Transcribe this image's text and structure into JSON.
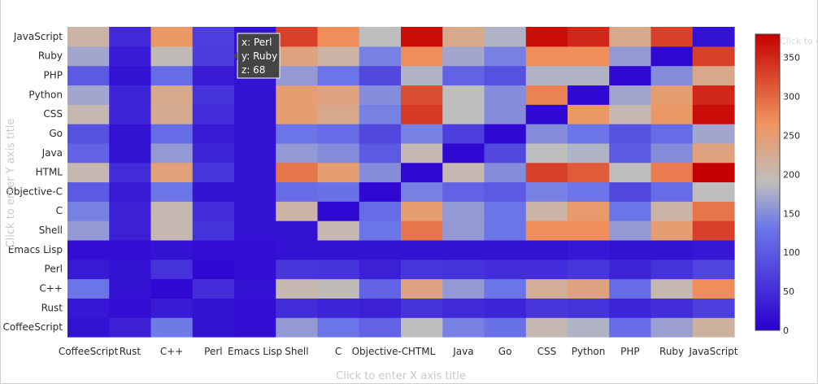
{
  "chart_data": {
    "type": "heatmap",
    "x": [
      "CoffeeScript",
      "Rust",
      "C++",
      "Perl",
      "Emacs Lisp",
      "Shell",
      "C",
      "Objective-C",
      "HTML",
      "Java",
      "Go",
      "CSS",
      "Python",
      "PHP",
      "Ruby",
      "JavaScript"
    ],
    "y": [
      "CoffeeScript",
      "Rust",
      "C++",
      "Perl",
      "Emacs Lisp",
      "Shell",
      "C",
      "Objective-C",
      "HTML",
      "Java",
      "Go",
      "CSS",
      "Python",
      "PHP",
      "Ruby",
      "JavaScript"
    ],
    "z": [
      [
        20,
        35,
        135,
        20,
        15,
        160,
        130,
        110,
        190,
        140,
        125,
        200,
        180,
        120,
        165,
        215
      ],
      [
        25,
        15,
        30,
        20,
        15,
        50,
        40,
        35,
        55,
        45,
        40,
        60,
        55,
        40,
        50,
        70
      ],
      [
        130,
        20,
        10,
        50,
        20,
        200,
        195,
        110,
        240,
        160,
        130,
        220,
        240,
        120,
        200,
        270
      ],
      [
        30,
        20,
        55,
        10,
        15,
        60,
        55,
        35,
        60,
        55,
        50,
        50,
        60,
        40,
        55,
        75
      ],
      [
        15,
        15,
        20,
        15,
        15,
        20,
        20,
        20,
        20,
        20,
        20,
        20,
        25,
        20,
        20,
        25
      ],
      [
        160,
        35,
        200,
        55,
        20,
        20,
        200,
        130,
        290,
        160,
        130,
        270,
        270,
        160,
        250,
        330
      ],
      [
        140,
        35,
        200,
        50,
        20,
        210,
        10,
        120,
        250,
        160,
        130,
        210,
        255,
        130,
        210,
        290
      ],
      [
        100,
        30,
        130,
        20,
        20,
        120,
        125,
        10,
        140,
        110,
        100,
        140,
        130,
        80,
        120,
        190
      ],
      [
        200,
        50,
        245,
        60,
        20,
        290,
        250,
        150,
        10,
        200,
        150,
        330,
        310,
        190,
        285,
        380
      ],
      [
        110,
        20,
        160,
        40,
        20,
        160,
        150,
        100,
        200,
        10,
        80,
        190,
        180,
        100,
        150,
        240
      ],
      [
        90,
        20,
        120,
        30,
        20,
        130,
        120,
        80,
        140,
        70,
        10,
        150,
        130,
        90,
        120,
        170
      ],
      [
        200,
        40,
        225,
        50,
        20,
        250,
        230,
        140,
        335,
        190,
        150,
        10,
        260,
        200,
        260,
        370
      ],
      [
        170,
        40,
        230,
        55,
        20,
        250,
        240,
        150,
        320,
        190,
        150,
        280,
        10,
        170,
        250,
        350
      ],
      [
        100,
        20,
        120,
        30,
        20,
        160,
        130,
        80,
        180,
        110,
        90,
        180,
        180,
        10,
        150,
        230
      ],
      [
        170,
        30,
        195,
        68,
        20,
        240,
        210,
        140,
        270,
        170,
        140,
        270,
        270,
        160,
        10,
        330
      ],
      [
        210,
        45,
        260,
        70,
        20,
        330,
        270,
        190,
        370,
        230,
        180,
        370,
        350,
        230,
        330,
        20
      ]
    ],
    "zlim": [
      0,
      380
    ],
    "colorscale": [
      [
        0,
        "#2a00d0"
      ],
      [
        0.35,
        "#6d78e8"
      ],
      [
        0.5,
        "#bebebe"
      ],
      [
        0.7,
        "#f0945e"
      ],
      [
        1,
        "#c50000"
      ]
    ],
    "colorbar_ticks": [
      0,
      50,
      100,
      150,
      200,
      250,
      300,
      350
    ],
    "xlabel": "Click to enter X axis title",
    "ylabel": "Click to enter Y axis title",
    "colorbar_title": "Click to enter",
    "hover": {
      "x_line": "x: Perl",
      "y_line": "y: Ruby",
      "z_line": "z: 68"
    }
  }
}
